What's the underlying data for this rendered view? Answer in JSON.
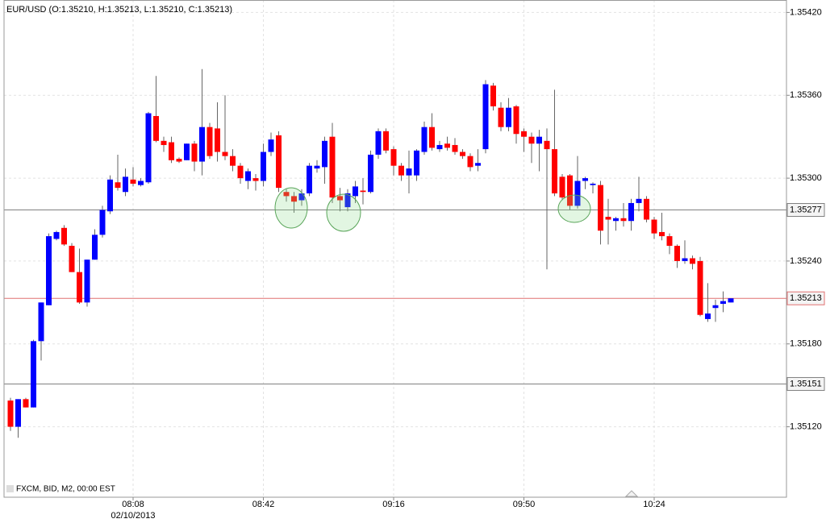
{
  "chart_data": {
    "type": "candlestick",
    "title": "EUR/USD (O:1.35210, H:1.35213, L:1.35210, C:1.35213)",
    "source_label": "FXCM, BID, M2, 00:00 EST",
    "date_label": "02/10/2013",
    "categories": [
      null,
      null,
      null,
      null,
      null,
      null,
      null,
      null,
      null,
      null,
      null,
      null,
      null,
      null,
      null,
      null,
      "08:08",
      null,
      null,
      null,
      null,
      null,
      null,
      null,
      null,
      null,
      null,
      null,
      null,
      null,
      null,
      null,
      null,
      "08:42",
      null,
      null,
      null,
      null,
      null,
      null,
      null,
      null,
      null,
      null,
      null,
      null,
      null,
      null,
      null,
      null,
      "09:16",
      null,
      null,
      null,
      null,
      null,
      null,
      null,
      null,
      null,
      null,
      null,
      null,
      null,
      null,
      null,
      null,
      "09:50",
      null,
      null,
      null,
      null,
      null,
      null,
      null,
      null,
      null,
      null,
      null,
      null,
      null,
      null,
      null,
      null,
      "10:24",
      null,
      null,
      null,
      null,
      null,
      null,
      null,
      null,
      null,
      null
    ],
    "open": [
      1.35139,
      1.3512,
      1.3514,
      1.35134,
      1.35182,
      1.35208,
      1.35256,
      1.35264,
      1.35251,
      1.35232,
      1.3521,
      1.35241,
      1.35259,
      1.35276,
      1.35297,
      1.3529,
      1.35299,
      1.35295,
      1.35297,
      1.35345,
      1.35327,
      1.35326,
      1.35314,
      1.35313,
      1.35325,
      1.35312,
      1.35337,
      1.35336,
      1.35319,
      1.35316,
      1.35309,
      1.35298,
      1.353,
      1.35298,
      1.35319,
      1.35331,
      1.3529,
      1.35287,
      1.35284,
      1.35289,
      1.35307,
      1.35308,
      1.3533,
      1.35287,
      1.35279,
      1.35287,
      1.35291,
      1.3529,
      1.35317,
      1.35334,
      1.35321,
      1.35309,
      1.35302,
      1.35302,
      1.35319,
      1.35337,
      1.35321,
      1.35325,
      1.35324,
      1.35319,
      1.35316,
      1.35309,
      1.35321,
      1.35367,
      1.35351,
      1.35337,
      1.35352,
      1.35334,
      1.3533,
      1.35325,
      1.35327,
      1.35321,
      1.35301,
      1.35302,
      1.3528,
      1.35298,
      1.35295,
      1.35295,
      1.35272,
      1.35269,
      1.35271,
      1.35269,
      1.35282,
      1.35285,
      1.3527,
      1.35261,
      1.35258,
      1.35251,
      1.3524,
      1.35242,
      1.3524,
      1.35198,
      1.35206,
      1.35209,
      1.3521
    ],
    "high": [
      1.35141,
      1.3514,
      1.35141,
      1.35183,
      1.3521,
      1.3526,
      1.35262,
      1.35266,
      1.35253,
      1.35249,
      1.35241,
      1.35263,
      1.3528,
      1.35302,
      1.35317,
      1.35307,
      1.35308,
      1.353,
      1.35348,
      1.35374,
      1.3533,
      1.3533,
      1.35315,
      1.35325,
      1.35327,
      1.35379,
      1.3534,
      1.35355,
      1.3536,
      1.35321,
      1.35311,
      1.35307,
      1.35303,
      1.35325,
      1.35333,
      1.35334,
      1.35292,
      1.3529,
      1.35292,
      1.35311,
      1.35313,
      1.3533,
      1.3534,
      1.35293,
      1.35292,
      1.35298,
      1.353,
      1.3532,
      1.35336,
      1.35336,
      1.35323,
      1.35311,
      1.3532,
      1.35321,
      1.35341,
      1.35347,
      1.35327,
      1.3533,
      1.35329,
      1.35321,
      1.35318,
      1.35321,
      1.35371,
      1.35369,
      1.35355,
      1.35358,
      1.35353,
      1.35336,
      1.35333,
      1.35335,
      1.35336,
      1.35364,
      1.35303,
      1.35303,
      1.35316,
      1.35301,
      1.35297,
      1.35298,
      1.35285,
      1.35272,
      1.35282,
      1.35285,
      1.35301,
      1.35287,
      1.35272,
      1.35275,
      1.3526,
      1.35252,
      1.35255,
      1.35244,
      1.35243,
      1.35224,
      1.35212,
      1.35218,
      1.35213
    ],
    "low": [
      1.35117,
      1.35112,
      1.35134,
      1.35134,
      1.35168,
      1.35208,
      1.35255,
      1.35251,
      1.35232,
      1.35209,
      1.35207,
      1.35241,
      1.35257,
      1.35274,
      1.35291,
      1.35287,
      1.35294,
      1.35294,
      1.35296,
      1.35326,
      1.35319,
      1.35311,
      1.35311,
      1.35313,
      1.35305,
      1.35302,
      1.35314,
      1.35312,
      1.35313,
      1.35305,
      1.35296,
      1.35292,
      1.35291,
      1.35294,
      1.35316,
      1.3529,
      1.35283,
      1.35275,
      1.3528,
      1.35287,
      1.35304,
      1.35296,
      1.35282,
      1.35276,
      1.35276,
      1.35282,
      1.35281,
      1.35289,
      1.35314,
      1.35318,
      1.35302,
      1.35298,
      1.35289,
      1.35298,
      1.35317,
      1.3532,
      1.35319,
      1.3532,
      1.35317,
      1.35314,
      1.35305,
      1.35305,
      1.35318,
      1.35349,
      1.35334,
      1.35334,
      1.35325,
      1.35319,
      1.35311,
      1.35305,
      1.35234,
      1.35287,
      1.35284,
      1.35277,
      1.35278,
      1.35292,
      1.35289,
      1.35252,
      1.35252,
      1.35262,
      1.35265,
      1.35262,
      1.35276,
      1.35268,
      1.35256,
      1.35255,
      1.35245,
      1.35235,
      1.35238,
      1.35234,
      1.352,
      1.35196,
      1.35196,
      1.35203,
      1.3521
    ],
    "close": [
      1.3512,
      1.3514,
      1.35134,
      1.35182,
      1.3521,
      1.35258,
      1.35261,
      1.35252,
      1.35232,
      1.3521,
      1.35241,
      1.35259,
      1.35277,
      1.35299,
      1.35293,
      1.35301,
      1.35296,
      1.35298,
      1.35347,
      1.35327,
      1.35324,
      1.35313,
      1.35312,
      1.35325,
      1.35312,
      1.35337,
      1.35316,
      1.35319,
      1.35316,
      1.35309,
      1.353,
      1.35305,
      1.35298,
      1.35319,
      1.35328,
      1.35293,
      1.35287,
      1.35283,
      1.35289,
      1.35309,
      1.35309,
      1.35327,
      1.35286,
      1.35284,
      1.35289,
      1.35294,
      1.3529,
      1.35317,
      1.35334,
      1.3532,
      1.35309,
      1.35302,
      1.35307,
      1.3532,
      1.35337,
      1.35322,
      1.35324,
      1.35322,
      1.35319,
      1.35316,
      1.35308,
      1.35311,
      1.35368,
      1.35352,
      1.35337,
      1.35351,
      1.35332,
      1.3533,
      1.35325,
      1.3533,
      1.35321,
      1.35289,
      1.35286,
      1.3528,
      1.35298,
      1.353,
      1.35296,
      1.35262,
      1.3527,
      1.35271,
      1.35269,
      1.35282,
      1.35285,
      1.3527,
      1.3526,
      1.35258,
      1.35251,
      1.3524,
      1.35242,
      1.35238,
      1.35201,
      1.35202,
      1.35208,
      1.35211,
      1.35213
    ],
    "up_color": "#0000ff",
    "down_color": "#ff0000",
    "ylim": [
      1.35069,
      1.35429
    ],
    "yticks": [
      {
        "value": 1.3512,
        "label": "1.35120"
      },
      {
        "value": 1.3518,
        "label": "1.35180"
      },
      {
        "value": 1.3524,
        "label": "1.35240"
      },
      {
        "value": 1.353,
        "label": "1.35300"
      },
      {
        "value": 1.3536,
        "label": "1.35360"
      },
      {
        "value": 1.3542,
        "label": "1.35420"
      }
    ],
    "levels": [
      {
        "value": 1.35277,
        "color": "#808080"
      },
      {
        "value": 1.35213,
        "color": "#e07070"
      },
      {
        "value": 1.35151,
        "color": "#808080"
      }
    ],
    "grid": true
  }
}
